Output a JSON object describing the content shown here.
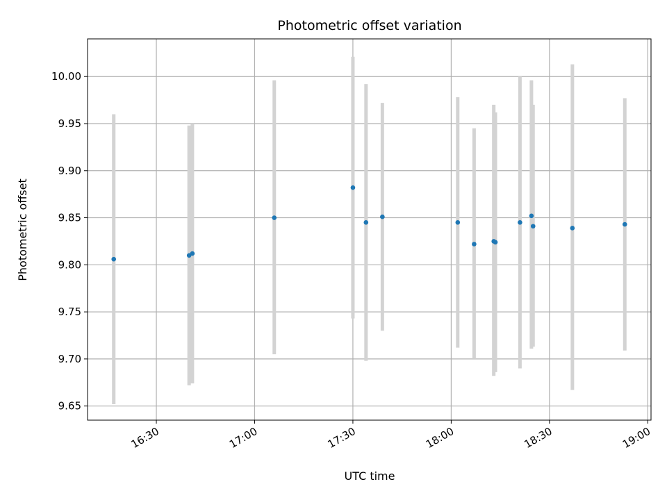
{
  "chart_data": {
    "type": "scatter",
    "title": "Photometric offset variation",
    "xlabel": "UTC time",
    "ylabel": "Photometric offset",
    "x_axis_type": "time",
    "xlim": [
      "16:09",
      "19:01"
    ],
    "ylim": [
      9.635,
      10.04
    ],
    "xticks": [
      "16:30",
      "17:00",
      "17:30",
      "18:00",
      "18:30",
      "19:00"
    ],
    "yticks": [
      9.65,
      9.7,
      9.75,
      9.8,
      9.85,
      9.9,
      9.95,
      10.0
    ],
    "grid": true,
    "marker_color": "#1f77b4",
    "errorbar_color": "#d3d3d3",
    "points": [
      {
        "time": "16:17",
        "y": 9.806,
        "low": 9.652,
        "high": 9.96
      },
      {
        "time": "16:40",
        "y": 9.81,
        "low": 9.672,
        "high": 9.948
      },
      {
        "time": "16:41",
        "y": 9.812,
        "low": 9.674,
        "high": 9.95
      },
      {
        "time": "17:06",
        "y": 9.85,
        "low": 9.705,
        "high": 9.996
      },
      {
        "time": "17:30",
        "y": 9.882,
        "low": 9.743,
        "high": 10.021
      },
      {
        "time": "17:34",
        "y": 9.845,
        "low": 9.698,
        "high": 9.992
      },
      {
        "time": "17:39",
        "y": 9.851,
        "low": 9.73,
        "high": 9.972
      },
      {
        "time": "18:02",
        "y": 9.845,
        "low": 9.712,
        "high": 9.978
      },
      {
        "time": "18:07",
        "y": 9.822,
        "low": 9.7,
        "high": 9.945
      },
      {
        "time": "18:13",
        "y": 9.825,
        "low": 9.682,
        "high": 9.97
      },
      {
        "time": "18:13.5",
        "y": 9.824,
        "low": 9.686,
        "high": 9.962
      },
      {
        "time": "18:21",
        "y": 9.845,
        "low": 9.69,
        "high": 10.0
      },
      {
        "time": "18:24.5",
        "y": 9.852,
        "low": 9.711,
        "high": 9.996
      },
      {
        "time": "18:25",
        "y": 9.841,
        "low": 9.713,
        "high": 9.97
      },
      {
        "time": "18:37",
        "y": 9.839,
        "low": 9.667,
        "high": 10.013
      },
      {
        "time": "18:53",
        "y": 9.843,
        "low": 9.709,
        "high": 9.977
      }
    ]
  }
}
